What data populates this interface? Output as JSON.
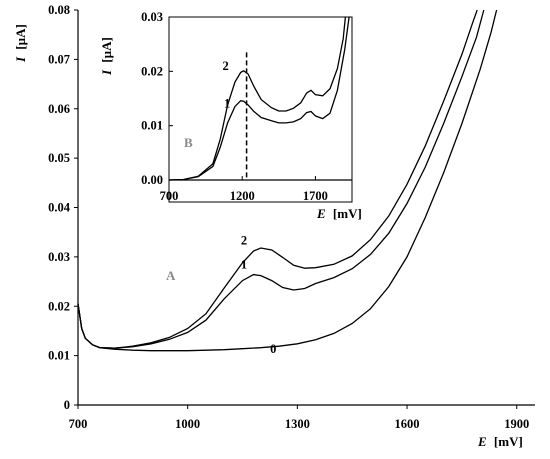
{
  "chart_data": [
    {
      "id": "main",
      "type": "line",
      "panel_label": "A",
      "xlabel_symbol": "E",
      "xlabel_unit": "[mV]",
      "ylabel_symbol": "I",
      "ylabel_unit": "[µA]",
      "xlim": [
        700,
        1950
      ],
      "ylim": [
        0,
        0.08
      ],
      "xticks": [
        700,
        1000,
        1300,
        1600,
        1900
      ],
      "yticks": [
        "0",
        "0.01",
        "0.02",
        "0.03",
        "0.04",
        "0.05",
        "0.06",
        "0.07",
        "0.08"
      ],
      "series": [
        {
          "name": "0",
          "points": [
            [
              700,
              0.0205
            ],
            [
              710,
              0.0155
            ],
            [
              720,
              0.0135
            ],
            [
              740,
              0.0122
            ],
            [
              760,
              0.0116
            ],
            [
              800,
              0.0113
            ],
            [
              850,
              0.0111
            ],
            [
              900,
              0.011
            ],
            [
              1000,
              0.011
            ],
            [
              1050,
              0.0111
            ],
            [
              1100,
              0.0112
            ],
            [
              1150,
              0.0114
            ],
            [
              1200,
              0.0116
            ],
            [
              1250,
              0.0119
            ],
            [
              1300,
              0.0124
            ],
            [
              1350,
              0.0132
            ],
            [
              1400,
              0.0145
            ],
            [
              1450,
              0.0165
            ],
            [
              1500,
              0.0195
            ],
            [
              1550,
              0.024
            ],
            [
              1600,
              0.03
            ],
            [
              1650,
              0.038
            ],
            [
              1700,
              0.047
            ],
            [
              1750,
              0.057
            ],
            [
              1800,
              0.068
            ],
            [
              1830,
              0.0755
            ],
            [
              1845,
              0.08
            ]
          ]
        },
        {
          "name": "1",
          "points": [
            [
              700,
              0.0205
            ],
            [
              710,
              0.0155
            ],
            [
              720,
              0.0135
            ],
            [
              740,
              0.0122
            ],
            [
              760,
              0.0116
            ],
            [
              800,
              0.0115
            ],
            [
              850,
              0.0118
            ],
            [
              900,
              0.0124
            ],
            [
              950,
              0.0133
            ],
            [
              1000,
              0.0147
            ],
            [
              1050,
              0.0172
            ],
            [
              1100,
              0.0215
            ],
            [
              1150,
              0.0252
            ],
            [
              1180,
              0.0264
            ],
            [
              1200,
              0.0262
            ],
            [
              1230,
              0.0252
            ],
            [
              1260,
              0.0238
            ],
            [
              1290,
              0.0233
            ],
            [
              1320,
              0.0236
            ],
            [
              1350,
              0.0246
            ],
            [
              1400,
              0.0258
            ],
            [
              1450,
              0.0276
            ],
            [
              1500,
              0.0305
            ],
            [
              1550,
              0.0348
            ],
            [
              1600,
              0.0408
            ],
            [
              1650,
              0.0482
            ],
            [
              1700,
              0.057
            ],
            [
              1750,
              0.0665
            ],
            [
              1790,
              0.0745
            ],
            [
              1810,
              0.08
            ]
          ]
        },
        {
          "name": "2",
          "points": [
            [
              700,
              0.0205
            ],
            [
              710,
              0.0155
            ],
            [
              720,
              0.0135
            ],
            [
              740,
              0.0122
            ],
            [
              760,
              0.0116
            ],
            [
              800,
              0.0115
            ],
            [
              850,
              0.0119
            ],
            [
              900,
              0.0126
            ],
            [
              950,
              0.0137
            ],
            [
              1000,
              0.0155
            ],
            [
              1050,
              0.0185
            ],
            [
              1100,
              0.0237
            ],
            [
              1150,
              0.0288
            ],
            [
              1180,
              0.0312
            ],
            [
              1200,
              0.0318
            ],
            [
              1230,
              0.0314
            ],
            [
              1260,
              0.0299
            ],
            [
              1290,
              0.0283
            ],
            [
              1320,
              0.0277
            ],
            [
              1350,
              0.0278
            ],
            [
              1400,
              0.0285
            ],
            [
              1450,
              0.0302
            ],
            [
              1500,
              0.0335
            ],
            [
              1550,
              0.0383
            ],
            [
              1600,
              0.0447
            ],
            [
              1650,
              0.0525
            ],
            [
              1700,
              0.0615
            ],
            [
              1750,
              0.071
            ],
            [
              1780,
              0.0775
            ],
            [
              1792,
              0.08
            ]
          ]
        }
      ]
    },
    {
      "id": "inset",
      "type": "line",
      "panel_label": "B",
      "xlabel_symbol": "E",
      "xlabel_unit": "[mV]",
      "ylabel_symbol": "I",
      "ylabel_unit": "[µA]",
      "xlim": [
        700,
        1950
      ],
      "ylim": [
        0,
        0.03
      ],
      "xticks": [
        700,
        1200,
        1700
      ],
      "yticks": [
        "0.00",
        "0.01",
        "0.02",
        "0.03"
      ],
      "marker_x": 1230,
      "series": [
        {
          "name": "1",
          "points": [
            [
              700,
              0.0
            ],
            [
              800,
              0.0001
            ],
            [
              900,
              0.0006
            ],
            [
              1000,
              0.0025
            ],
            [
              1050,
              0.006
            ],
            [
              1100,
              0.0105
            ],
            [
              1150,
              0.0135
            ],
            [
              1190,
              0.0146
            ],
            [
              1210,
              0.0145
            ],
            [
              1240,
              0.0138
            ],
            [
              1280,
              0.0126
            ],
            [
              1330,
              0.0115
            ],
            [
              1400,
              0.0109
            ],
            [
              1450,
              0.0105
            ],
            [
              1500,
              0.0105
            ],
            [
              1550,
              0.0107
            ],
            [
              1600,
              0.0113
            ],
            [
              1640,
              0.0124
            ],
            [
              1670,
              0.0126
            ],
            [
              1700,
              0.0118
            ],
            [
              1750,
              0.0113
            ],
            [
              1800,
              0.0123
            ],
            [
              1850,
              0.0165
            ],
            [
              1900,
              0.024
            ],
            [
              1930,
              0.03
            ]
          ]
        },
        {
          "name": "2",
          "points": [
            [
              700,
              0.0
            ],
            [
              800,
              0.0001
            ],
            [
              900,
              0.0007
            ],
            [
              1000,
              0.003
            ],
            [
              1050,
              0.0075
            ],
            [
              1100,
              0.0138
            ],
            [
              1150,
              0.018
            ],
            [
              1190,
              0.0198
            ],
            [
              1210,
              0.0201
            ],
            [
              1240,
              0.0195
            ],
            [
              1280,
              0.0172
            ],
            [
              1330,
              0.0148
            ],
            [
              1400,
              0.0133
            ],
            [
              1450,
              0.0127
            ],
            [
              1500,
              0.0127
            ],
            [
              1550,
              0.0132
            ],
            [
              1600,
              0.0142
            ],
            [
              1640,
              0.016
            ],
            [
              1670,
              0.0165
            ],
            [
              1700,
              0.0157
            ],
            [
              1750,
              0.0155
            ],
            [
              1800,
              0.0168
            ],
            [
              1850,
              0.0205
            ],
            [
              1890,
              0.026
            ],
            [
              1905,
              0.03
            ]
          ]
        }
      ]
    }
  ]
}
